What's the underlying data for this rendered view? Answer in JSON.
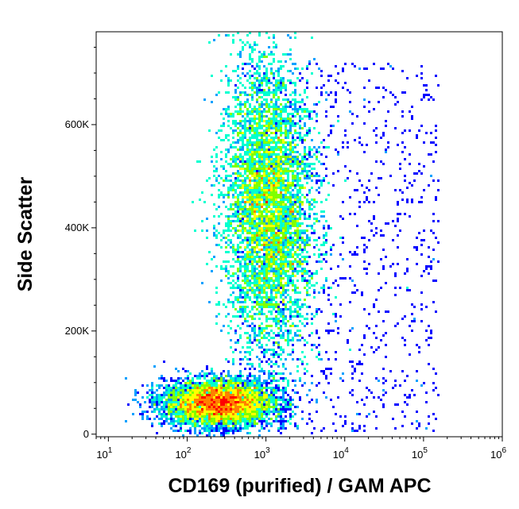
{
  "chart_data": {
    "type": "scatter",
    "subtype": "flow-cytometry-density-dot-plot",
    "title": "",
    "xlabel": "CD169 (purified) / GAM APC",
    "ylabel": "Side Scatter",
    "x_scale": "log",
    "y_scale": "linear",
    "xlim": [
      7,
      1000000
    ],
    "ylim": [
      -5000,
      780000
    ],
    "x_ticks": [
      {
        "value": 10,
        "base": "10",
        "exp": "1"
      },
      {
        "value": 100,
        "base": "10",
        "exp": "2"
      },
      {
        "value": 1000,
        "base": "10",
        "exp": "3"
      },
      {
        "value": 10000,
        "base": "10",
        "exp": "4"
      },
      {
        "value": 100000,
        "base": "10",
        "exp": "5"
      },
      {
        "value": 1000000,
        "base": "10",
        "exp": "6"
      }
    ],
    "y_ticks": [
      {
        "value": 0,
        "label": "0"
      },
      {
        "value": 200000,
        "label": "200K"
      },
      {
        "value": 400000,
        "label": "400K"
      },
      {
        "value": 600000,
        "label": "600K"
      }
    ],
    "grid": false,
    "legend": "none",
    "colormap": [
      "#0000ff",
      "#00a0ff",
      "#00ffd0",
      "#80ff00",
      "#ffff00",
      "#ff8000",
      "#ff0000"
    ],
    "populations": [
      {
        "name": "low-SSC population",
        "x_center": 250,
        "y_center": 60000,
        "x_spread_decades": 0.35,
        "y_spread": 22000,
        "events": 9000,
        "peak_density": "high"
      },
      {
        "name": "high-SSC population",
        "x_center": 1100,
        "y_center": 440000,
        "x_spread_decades": 0.28,
        "y_spread": 140000,
        "events": 14000,
        "peak_density": "medium"
      }
    ]
  }
}
